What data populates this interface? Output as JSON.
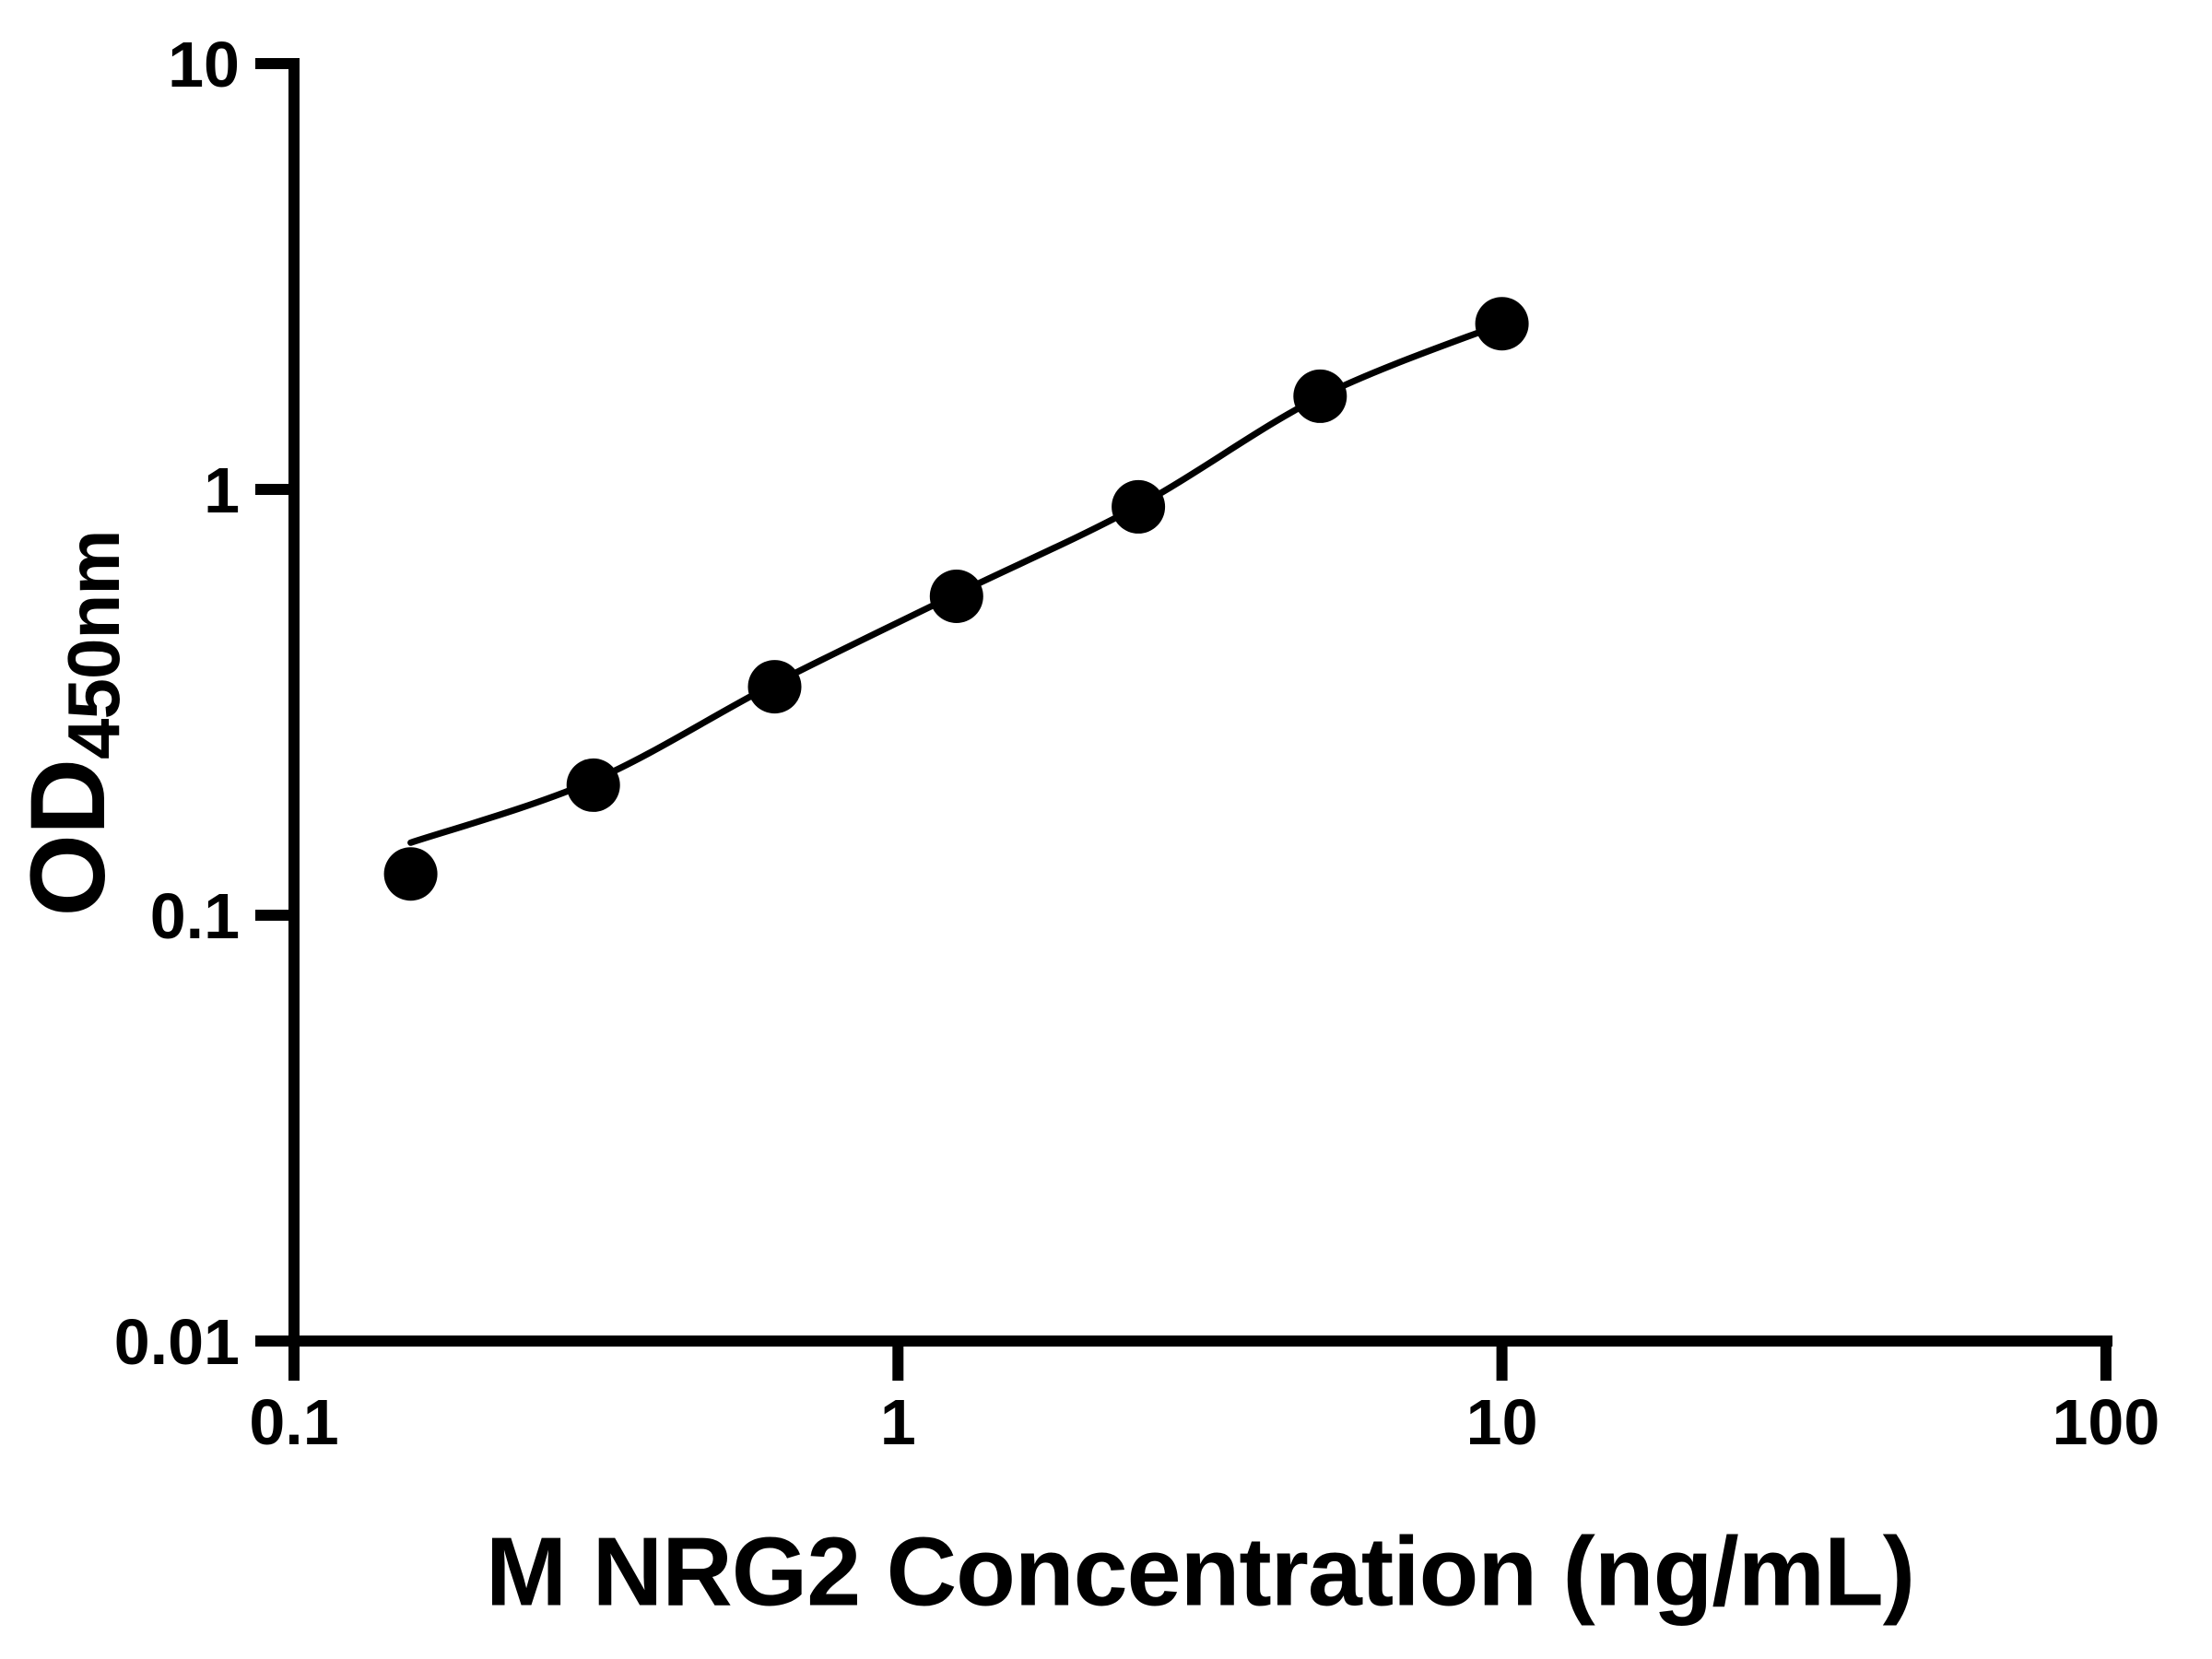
{
  "figure": {
    "background": "#ffffff",
    "ink_color": "#000000"
  },
  "chart_data": {
    "type": "scatter",
    "title": "",
    "xlabel": "M NRG2 Concentration (ng/mL)",
    "ylabel_main": "OD",
    "ylabel_sub": "450nm",
    "x_scale": "log",
    "y_scale": "log",
    "xlim": [
      0.1,
      100
    ],
    "ylim": [
      0.01,
      10
    ],
    "grid": false,
    "legend": null,
    "x_ticks": [
      {
        "value": 0.1,
        "label": "0.1"
      },
      {
        "value": 1,
        "label": "1"
      },
      {
        "value": 10,
        "label": "10"
      },
      {
        "value": 100,
        "label": "100"
      }
    ],
    "y_ticks": [
      {
        "value": 10,
        "label": "10"
      },
      {
        "value": 1,
        "label": "1"
      },
      {
        "value": 0.1,
        "label": "0.1"
      },
      {
        "value": 0.01,
        "label": "0.01"
      }
    ],
    "series": [
      {
        "name": "standard-points",
        "type": "scatter",
        "marker": "circle",
        "color": "#000000",
        "x": [
          0.156,
          0.313,
          0.625,
          1.25,
          2.5,
          5,
          10
        ],
        "y": [
          0.125,
          0.202,
          0.344,
          0.561,
          0.91,
          1.655,
          2.45
        ]
      },
      {
        "name": "fit-curve",
        "type": "line",
        "color": "#000000",
        "x": [
          0.156,
          0.313,
          0.625,
          1.25,
          2.5,
          5,
          10
        ],
        "y": [
          0.148,
          0.207,
          0.35,
          0.568,
          0.915,
          1.65,
          2.45
        ]
      }
    ]
  }
}
